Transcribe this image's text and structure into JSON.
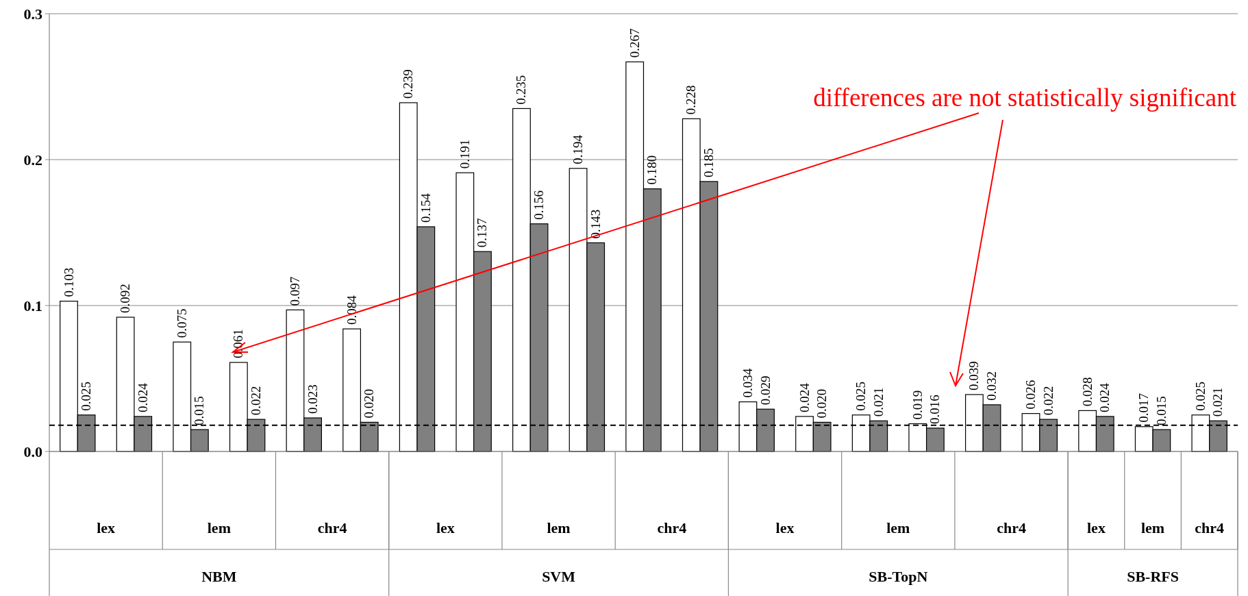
{
  "chart_data": {
    "type": "bar",
    "categories": [
      "lex",
      "lem",
      "chr4",
      "lex",
      "lem",
      "chr4",
      "lex",
      "lem",
      "chr4",
      "lex",
      "lem",
      "chr4"
    ],
    "series": [
      {
        "color": "#ffffff",
        "values": [
          0.103,
          0.075,
          0.097,
          0.239,
          0.235,
          0.267,
          0.034,
          0.025,
          0.039,
          0.028,
          0.017,
          0.025
        ]
      },
      {
        "color": "#808080",
        "values": [
          0.025,
          0.015,
          0.023,
          0.154,
          0.156,
          0.18,
          0.029,
          0.021,
          0.032,
          0.024,
          0.015,
          0.021
        ],
        "value_labels": [
          "0.025",
          "0.015",
          "0.023",
          "0.154",
          "0.156",
          "0.180",
          "0.029",
          "0.021",
          "0.032",
          "0.024",
          "0.015",
          "0.021"
        ]
      },
      {
        "color": "#ffffff",
        "values": [
          0.092,
          0.061,
          0.084,
          0.191,
          0.194,
          0.228,
          0.024,
          0.019,
          0.026,
          null,
          null,
          null
        ]
      },
      {
        "color": "#808080",
        "values": [
          0.024,
          0.022,
          0.02,
          0.137,
          0.143,
          0.185,
          0.02,
          0.016,
          0.022,
          null,
          null,
          null
        ],
        "value_labels": [
          "0.024",
          "0.022",
          "0.020",
          "0.137",
          "0.143",
          "0.185",
          "0.020",
          "0.016",
          "0.022",
          null,
          null,
          null
        ]
      }
    ],
    "ylim": [
      0,
      0.3
    ],
    "yticks": [
      {
        "value": 0,
        "label": "0.0"
      },
      {
        "value": 0.1,
        "label": "0.1"
      },
      {
        "value": 0.2,
        "label": "0.2"
      },
      {
        "value": 0.3,
        "label": "0.3"
      }
    ],
    "grid": "y",
    "data_labels": true,
    "ref_lines": [
      {
        "axis": "y",
        "value": 0.018,
        "line_style": "dashed",
        "color": "#000000"
      }
    ],
    "annotations": [
      "NBM",
      "SVM",
      "SB-TopN",
      "SB-RFS",
      {
        "text": "differences are not statistically significant"
      }
    ]
  }
}
